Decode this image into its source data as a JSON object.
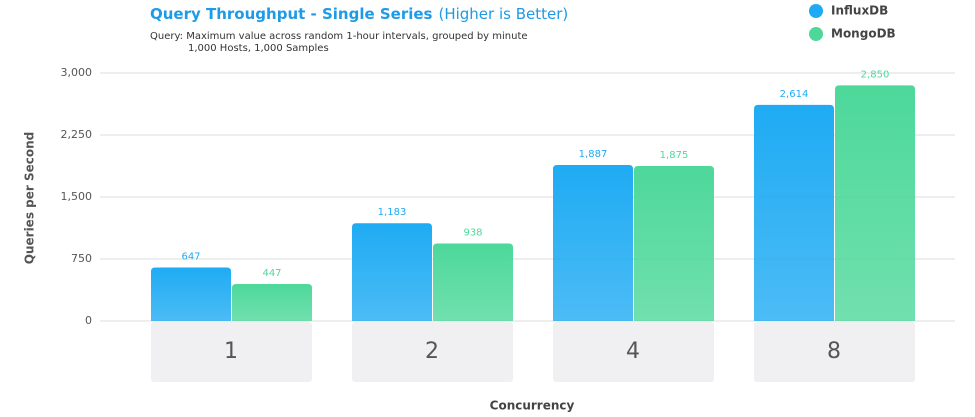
{
  "chart_data": {
    "type": "bar",
    "title": "Query Throughput - Single Series",
    "title_note": "(Higher is Better)",
    "subtitle_lines": [
      "Query: Maximum value across random 1-hour intervals, grouped by minute",
      "1,000 Hosts, 1,000 Samples"
    ],
    "x_label": "Concurrency",
    "y_label": "Queries per Second",
    "categories": [
      "1",
      "2",
      "4",
      "8"
    ],
    "series": [
      {
        "name": "InfluxDB",
        "color": "#1fabf3",
        "values": [
          647,
          1183,
          1887,
          2614
        ],
        "value_labels": [
          "647",
          "1,183",
          "1,887",
          "2,614"
        ]
      },
      {
        "name": "MongoDB",
        "color": "#4dd89a",
        "values": [
          447,
          938,
          1875,
          2850
        ],
        "value_labels": [
          "447",
          "938",
          "1,875",
          "2,850"
        ]
      }
    ],
    "ylim": [
      0,
      3000
    ],
    "yticks": [
      0,
      750,
      {
        "value": 1500,
        "label": "1,500"
      },
      {
        "value": 2250,
        "label": "2,250"
      },
      {
        "value": 3000,
        "label": "3,000"
      }
    ],
    "grid": true
  }
}
